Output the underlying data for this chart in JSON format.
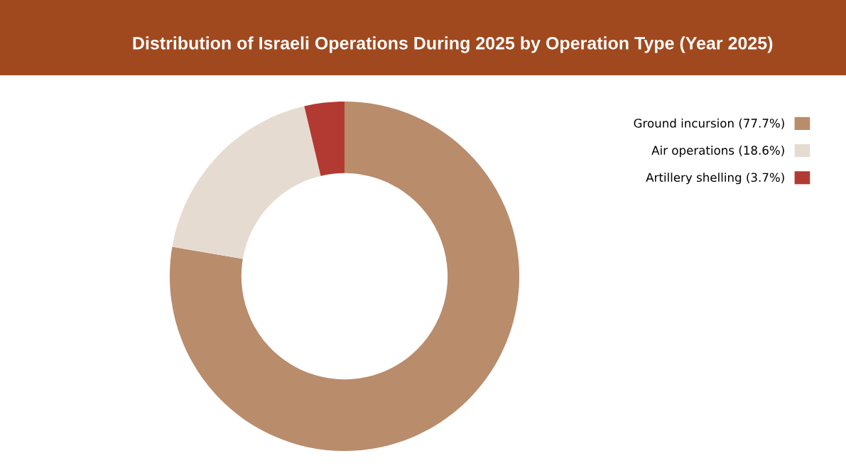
{
  "chart_data": {
    "type": "donut",
    "title": "Distribution of Israeli Operations During 2025 by Operation Type (Year 2025)",
    "categories": [
      "Ground incursion (77.7%)",
      "Air operations (18.6%)",
      "Artillery shelling (3.7%)"
    ],
    "values": [
      77.7,
      18.6,
      3.7
    ],
    "colors": [
      "#b98c6c",
      "#e6dbd0",
      "#b23a33"
    ],
    "legend": "top right"
  }
}
